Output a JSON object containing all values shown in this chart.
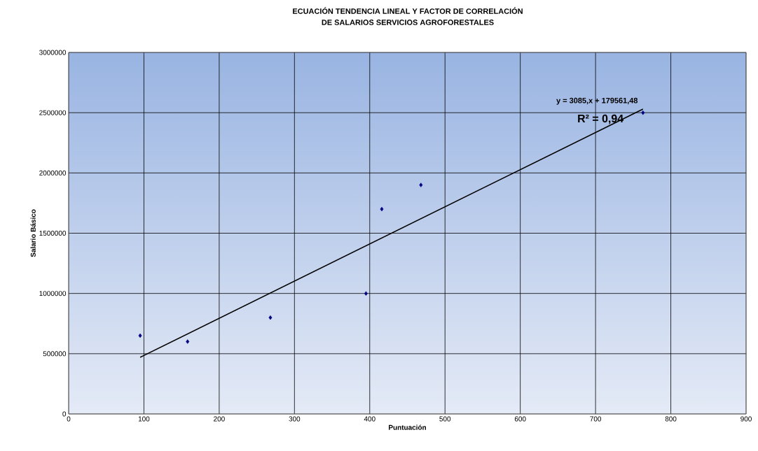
{
  "chart_data": {
    "type": "scatter",
    "title": "ECUACIÓN TENDENCIA LINEAL Y FACTOR DE CORRELACIÓN",
    "subtitle": "DE SALARIOS SERVICIOS AGROFORESTALES",
    "xlabel": "Puntuación",
    "ylabel": "Salario Básico",
    "series": [
      {
        "color": "#000080",
        "marker": "diamond",
        "x": [
          95,
          158,
          268,
          395,
          416,
          468,
          763
        ],
        "values": [
          650000,
          600000,
          800000,
          1000000,
          1700000,
          1900000,
          2500000
        ]
      },
      {
        "type": "line",
        "color": "#000000",
        "marker": "none",
        "line_style": "solid",
        "x": [
          95,
          763
        ],
        "values": [
          470000,
          2530000
        ]
      }
    ],
    "annotations": [
      "y = 3085,x + 179561,48",
      "R² = 0,94"
    ],
    "xlim": [
      0,
      900
    ],
    "xticks": [
      0,
      100,
      200,
      300,
      400,
      500,
      600,
      700,
      800,
      900
    ],
    "ylim": [
      0,
      3000000
    ],
    "yticks": [
      0,
      500000,
      1000000,
      1500000,
      2000000,
      2500000,
      3000000
    ],
    "grid": true
  }
}
